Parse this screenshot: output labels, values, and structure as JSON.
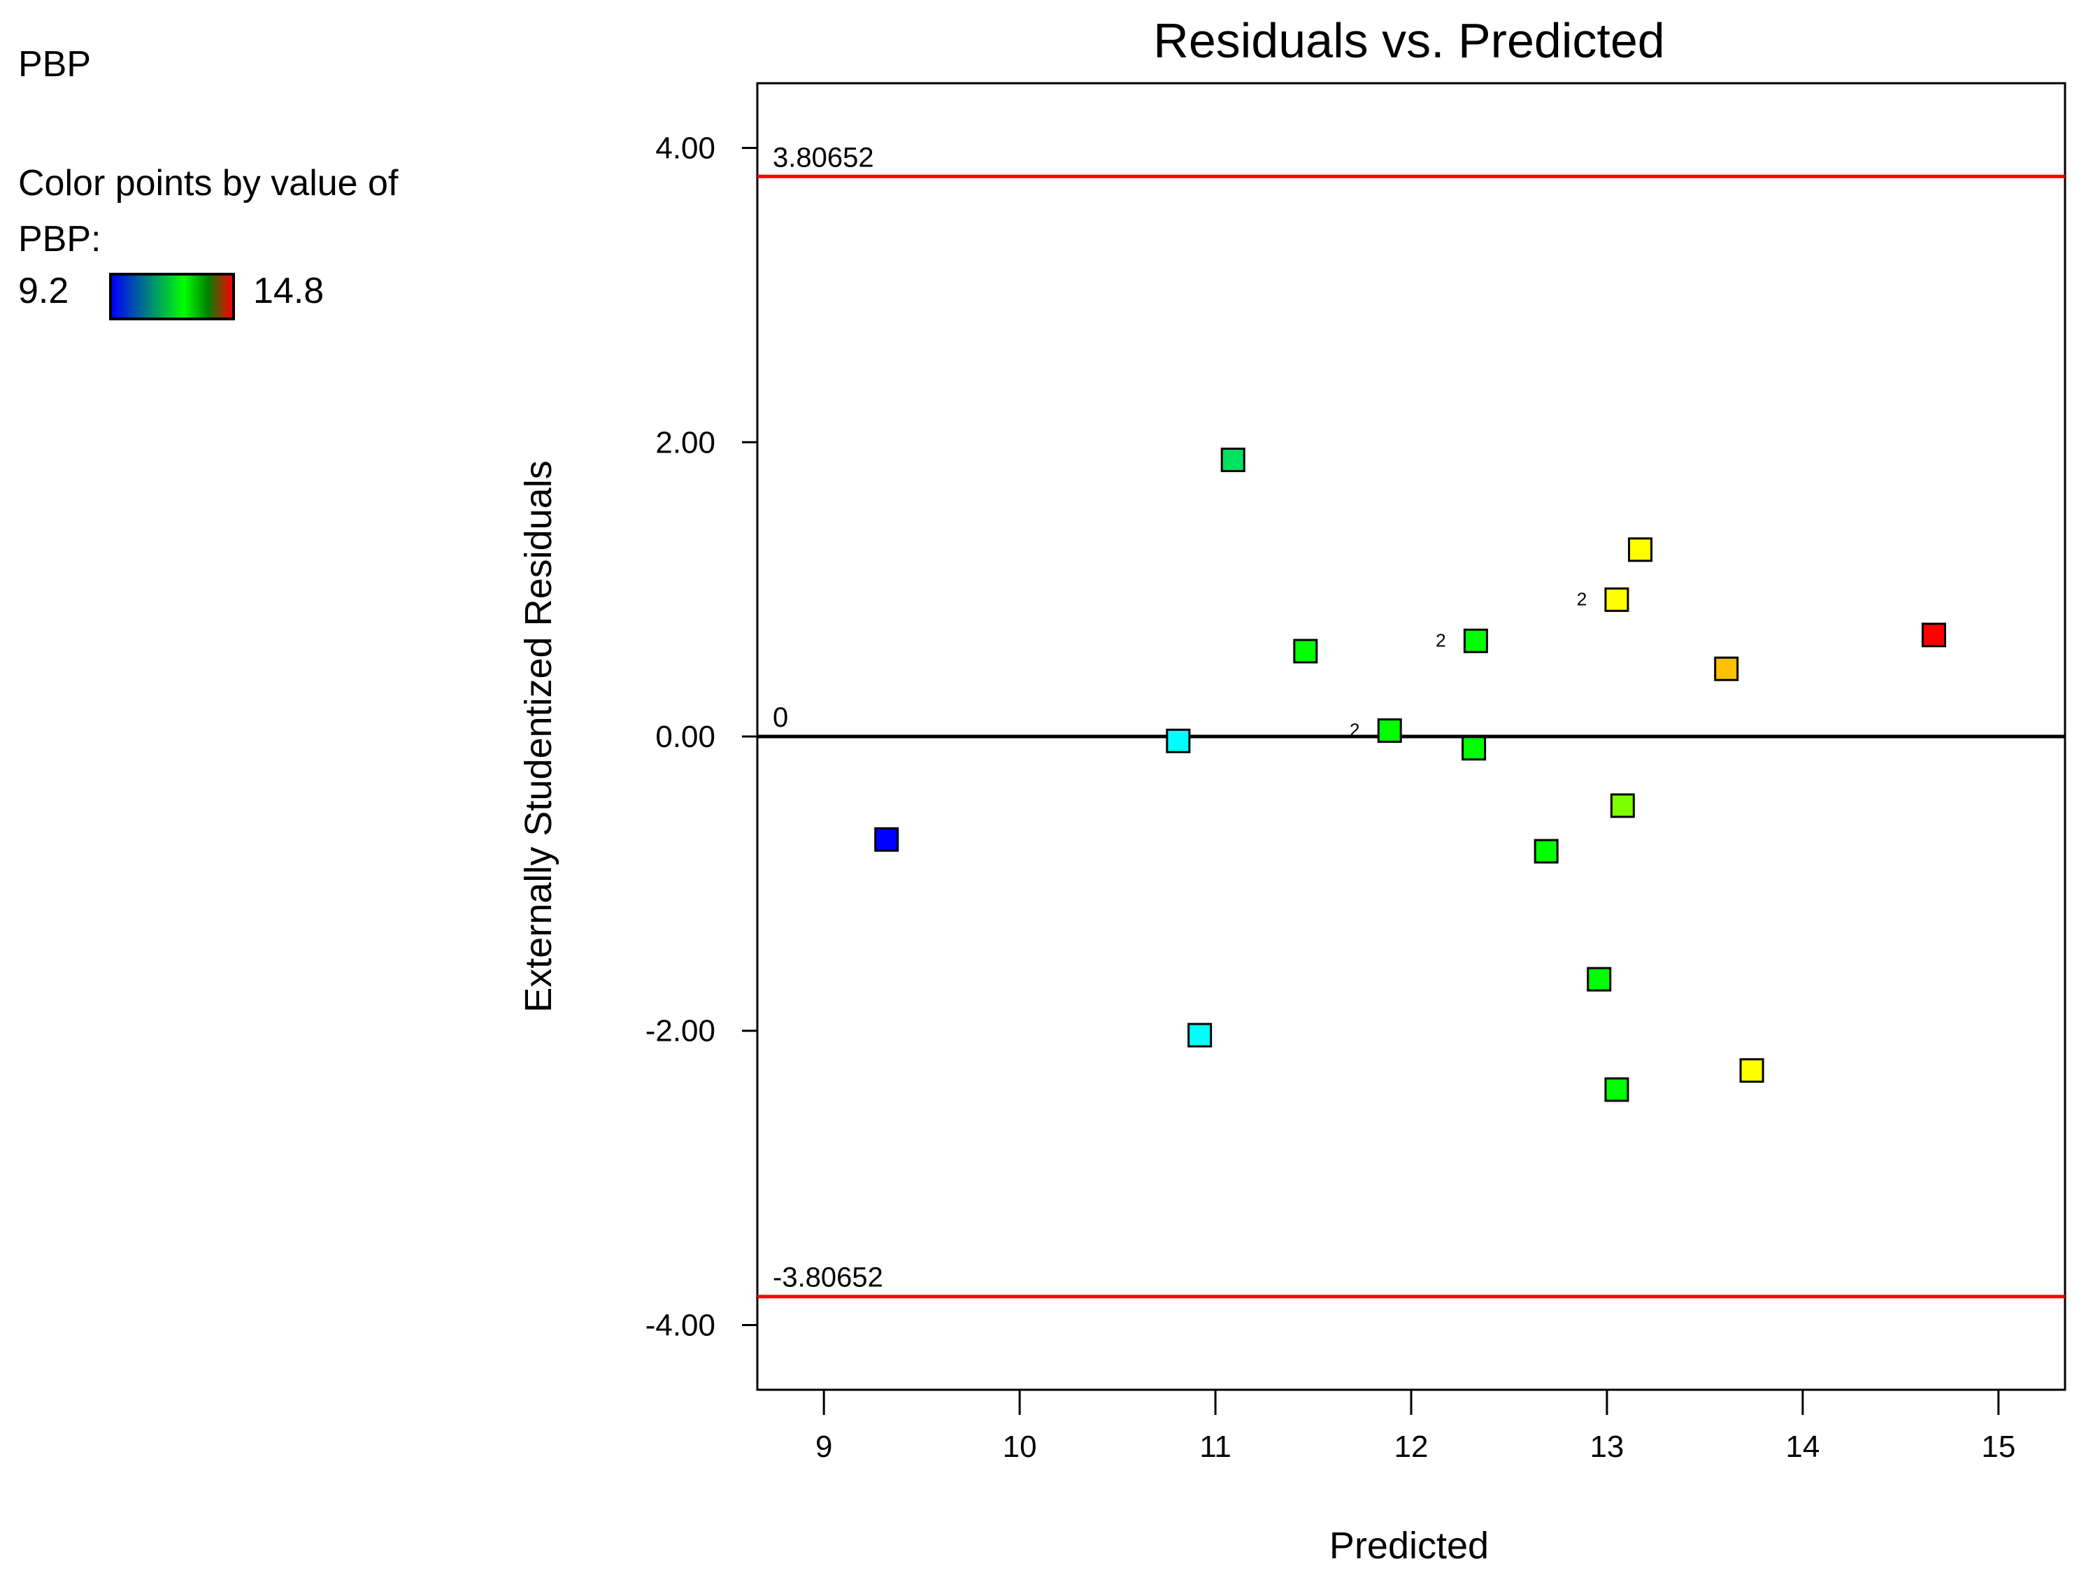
{
  "legend": {
    "response_name": "PBP",
    "caption": "Color points by value of PBP:",
    "min_label": "9.2",
    "max_label": "14.8",
    "min_color": "#0000ff",
    "max_color": "#ff0000"
  },
  "chart_data": {
    "type": "scatter",
    "title": "Residuals vs. Predicted",
    "xlabel": "Predicted",
    "ylabel": "Externally Studentized Residuals",
    "xlim": [
      8.66,
      15.34
    ],
    "ylim": [
      -4.44,
      4.44
    ],
    "xticks": [
      9,
      10,
      11,
      12,
      13,
      14,
      15
    ],
    "yticks": [
      4,
      2,
      0,
      -2,
      -4
    ],
    "ytick_labels": [
      "4.00",
      "2.00",
      "0.00",
      "-2.00",
      "-4.00"
    ],
    "color_min": 9.2,
    "color_max": 14.8,
    "reference_lines": [
      {
        "y": 3.80652,
        "label": "3.80652",
        "color": "#ff0000"
      },
      {
        "y": 0,
        "label": "0",
        "color": "#000000"
      },
      {
        "y": -3.80652,
        "label": "-3.80652",
        "color": "#ff0000"
      }
    ],
    "points": [
      {
        "x": 9.32,
        "y": -0.7,
        "color": "#0000ff",
        "count": ""
      },
      {
        "x": 10.81,
        "y": -0.03,
        "color": "#00ffff",
        "count": ""
      },
      {
        "x": 10.92,
        "y": -2.03,
        "color": "#00ffff",
        "count": ""
      },
      {
        "x": 11.09,
        "y": 1.88,
        "color": "#00e060",
        "count": ""
      },
      {
        "x": 11.46,
        "y": 0.58,
        "color": "#00ff00",
        "count": ""
      },
      {
        "x": 11.89,
        "y": 0.04,
        "color": "#00ff00",
        "count": "2"
      },
      {
        "x": 12.32,
        "y": -0.08,
        "color": "#00ff00",
        "count": ""
      },
      {
        "x": 12.33,
        "y": 0.65,
        "color": "#00ff00",
        "count": "2"
      },
      {
        "x": 12.69,
        "y": -0.78,
        "color": "#00ff00",
        "count": ""
      },
      {
        "x": 12.96,
        "y": -1.65,
        "color": "#00ff00",
        "count": ""
      },
      {
        "x": 13.05,
        "y": 0.93,
        "color": "#ffff00",
        "count": "2"
      },
      {
        "x": 13.05,
        "y": -2.4,
        "color": "#00ff00",
        "count": ""
      },
      {
        "x": 13.08,
        "y": -0.47,
        "color": "#80ff00",
        "count": ""
      },
      {
        "x": 13.17,
        "y": 1.27,
        "color": "#ffff00",
        "count": ""
      },
      {
        "x": 13.61,
        "y": 0.46,
        "color": "#ffc000",
        "count": ""
      },
      {
        "x": 13.74,
        "y": -2.27,
        "color": "#ffff00",
        "count": ""
      },
      {
        "x": 14.67,
        "y": 0.69,
        "color": "#ff0000",
        "count": ""
      }
    ]
  }
}
